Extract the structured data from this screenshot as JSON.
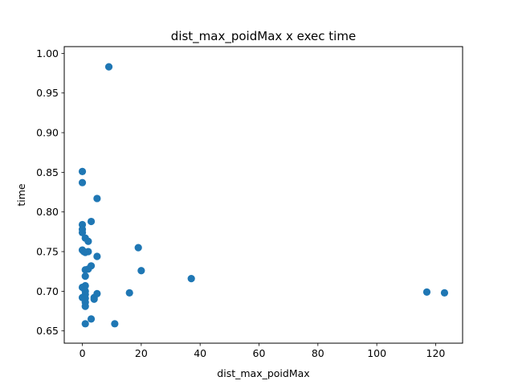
{
  "chart_data": {
    "type": "scatter",
    "title": "dist_max_poidMax x exec time",
    "xlabel": "dist_max_poidMax",
    "ylabel": "time",
    "xlim": [
      -6.15,
      129.15
    ],
    "ylim": [
      0.6345,
      1.0085
    ],
    "xticks": [
      0,
      20,
      40,
      60,
      80,
      100,
      120
    ],
    "yticks": [
      0.65,
      0.7,
      0.75,
      0.8,
      0.85,
      0.9,
      0.95,
      1.0
    ],
    "ytick_labels": [
      "0.65",
      "0.70",
      "0.75",
      "0.80",
      "0.85",
      "0.90",
      "0.95",
      "1.00"
    ],
    "grid": false,
    "marker_color": "#1f77b4",
    "points": [
      {
        "x": 9,
        "y": 0.983
      },
      {
        "x": 0,
        "y": 0.851
      },
      {
        "x": 0,
        "y": 0.837
      },
      {
        "x": 5,
        "y": 0.817
      },
      {
        "x": 3,
        "y": 0.788
      },
      {
        "x": 0,
        "y": 0.784
      },
      {
        "x": 0,
        "y": 0.778
      },
      {
        "x": 0,
        "y": 0.774
      },
      {
        "x": 1,
        "y": 0.767
      },
      {
        "x": 2,
        "y": 0.763
      },
      {
        "x": 19,
        "y": 0.755
      },
      {
        "x": 0,
        "y": 0.752
      },
      {
        "x": 0.5,
        "y": 0.75
      },
      {
        "x": 2,
        "y": 0.75
      },
      {
        "x": 1,
        "y": 0.749
      },
      {
        "x": 5,
        "y": 0.744
      },
      {
        "x": 3,
        "y": 0.732
      },
      {
        "x": 2,
        "y": 0.728
      },
      {
        "x": 1,
        "y": 0.727
      },
      {
        "x": 20,
        "y": 0.726
      },
      {
        "x": 1,
        "y": 0.719
      },
      {
        "x": 37,
        "y": 0.716
      },
      {
        "x": 1,
        "y": 0.707
      },
      {
        "x": 0,
        "y": 0.705
      },
      {
        "x": 1,
        "y": 0.7
      },
      {
        "x": 117,
        "y": 0.699
      },
      {
        "x": 16,
        "y": 0.698
      },
      {
        "x": 123,
        "y": 0.698
      },
      {
        "x": 5,
        "y": 0.697
      },
      {
        "x": 1,
        "y": 0.696
      },
      {
        "x": 0,
        "y": 0.692
      },
      {
        "x": 4,
        "y": 0.692
      },
      {
        "x": 1,
        "y": 0.691
      },
      {
        "x": 4,
        "y": 0.69
      },
      {
        "x": 1,
        "y": 0.686
      },
      {
        "x": 1,
        "y": 0.681
      },
      {
        "x": 3,
        "y": 0.665
      },
      {
        "x": 1,
        "y": 0.659
      },
      {
        "x": 11,
        "y": 0.659
      }
    ]
  }
}
